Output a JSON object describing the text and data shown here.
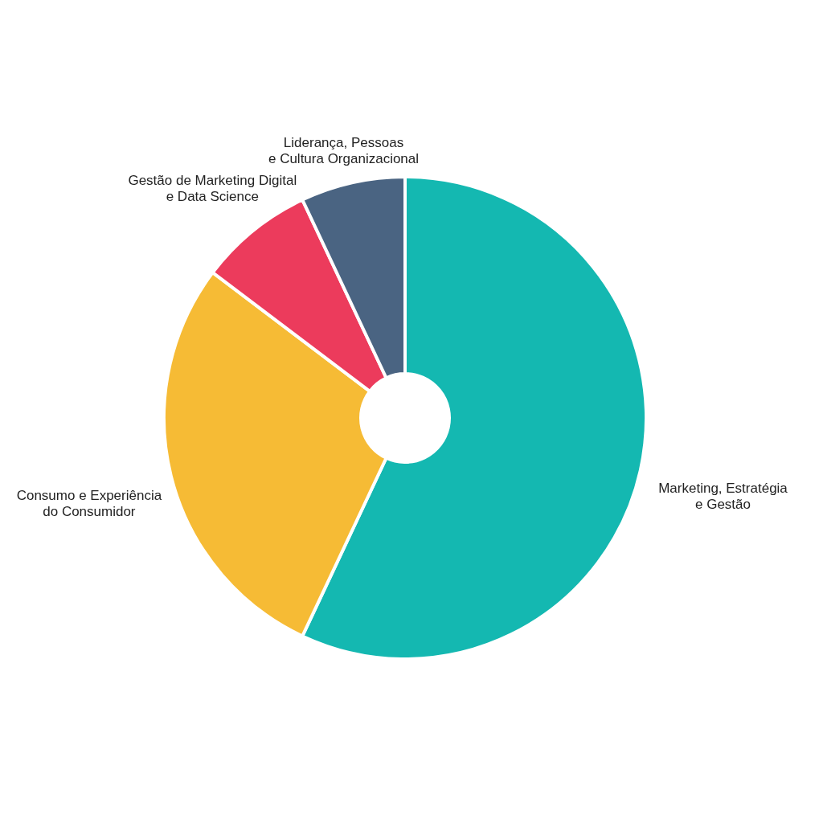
{
  "chart_data": {
    "type": "donut",
    "categories": [
      "Marketing, Estratégia\ne Gestão",
      "Consumo e Experiência\ndo Consumidor",
      "Gestão de Marketing Digital\ne Data Science",
      "Liderança, Pessoas\ne Cultura Organizacional"
    ],
    "values": [
      57,
      28.3,
      7.7,
      7
    ],
    "colors": [
      "#14b8b1",
      "#f6bb35",
      "#ec3b5c",
      "#4a6482"
    ]
  }
}
